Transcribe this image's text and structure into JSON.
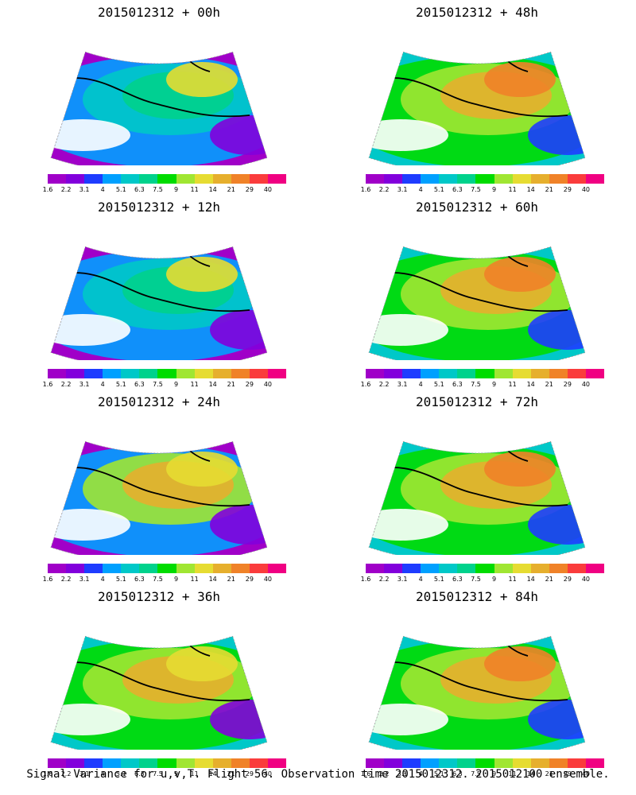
{
  "panels": [
    {
      "title": "2015012312 + 00h"
    },
    {
      "title": "2015012312 + 48h"
    },
    {
      "title": "2015012312 + 12h"
    },
    {
      "title": "2015012312 + 60h"
    },
    {
      "title": "2015012312 + 24h"
    },
    {
      "title": "2015012312 + 72h"
    },
    {
      "title": "2015012312 + 36h"
    },
    {
      "title": "2015012312 + 84h"
    }
  ],
  "colorbar": {
    "labels": [
      "1.6",
      "2.2",
      "3.1",
      "4",
      "5.1",
      "6.3",
      "7.5",
      "9",
      "11",
      "14",
      "21",
      "29",
      "40"
    ],
    "colors": [
      "#a000c8",
      "#8200dc",
      "#1e3cff",
      "#00a0ff",
      "#00c8c8",
      "#00d28c",
      "#00dc00",
      "#a0e632",
      "#e6dc32",
      "#e6af2d",
      "#f08228",
      "#fa3c3c",
      "#f00082"
    ]
  },
  "caption": "Signal Variance for u,v,T. Flight 56. Observation time 2015012312. 2015012100 ensemble."
}
